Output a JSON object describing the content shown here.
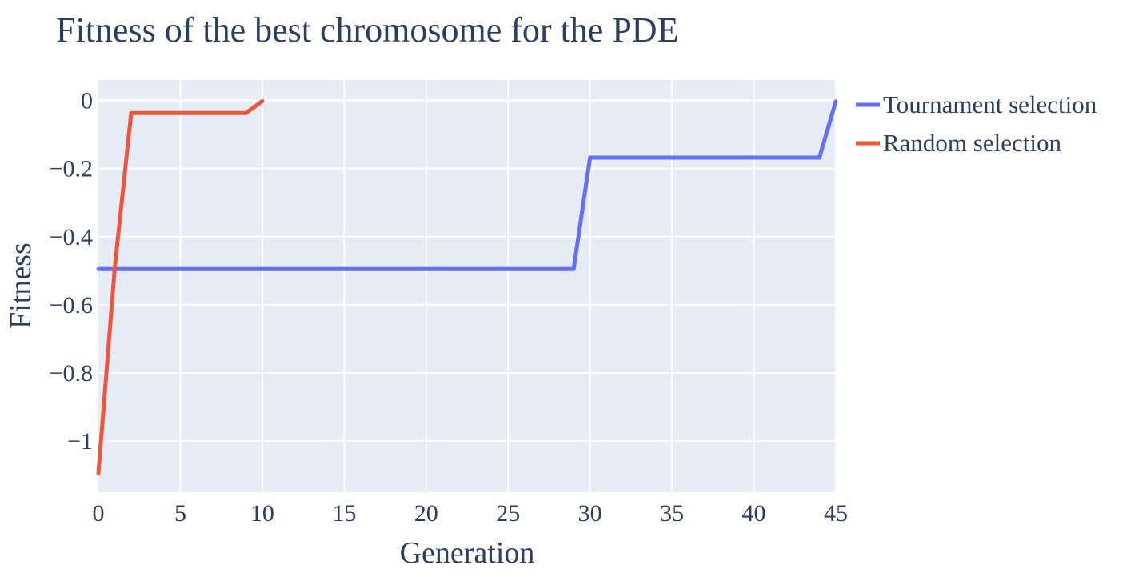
{
  "chart_data": {
    "type": "line",
    "title": "Fitness of the best chromosome for the PDE",
    "xlabel": "Generation",
    "ylabel": "Fitness",
    "xlim": [
      0,
      45
    ],
    "ylim": [
      -1.15,
      0.06
    ],
    "xticks": [
      0,
      5,
      10,
      15,
      20,
      25,
      30,
      35,
      40,
      45
    ],
    "xtick_labels": [
      "0",
      "5",
      "10",
      "15",
      "20",
      "25",
      "30",
      "35",
      "40",
      "45"
    ],
    "yticks": [
      0,
      -0.2,
      -0.4,
      -0.6,
      -0.8,
      -1
    ],
    "ytick_labels": [
      "0",
      "−0.2",
      "−0.4",
      "−0.6",
      "−0.8",
      "−1"
    ],
    "grid": true,
    "legend_position": "right",
    "background_color": "#e5ecf6",
    "series": [
      {
        "name": "Tournament selection",
        "color": "#636efa",
        "x": [
          0,
          1,
          2,
          3,
          4,
          5,
          6,
          7,
          8,
          9,
          10,
          11,
          12,
          13,
          14,
          15,
          16,
          17,
          18,
          19,
          20,
          21,
          22,
          23,
          24,
          25,
          26,
          27,
          28,
          29,
          30,
          31,
          32,
          33,
          34,
          35,
          36,
          37,
          38,
          39,
          40,
          41,
          42,
          43,
          44,
          45
        ],
        "y": [
          -0.495,
          -0.495,
          -0.495,
          -0.495,
          -0.495,
          -0.495,
          -0.495,
          -0.495,
          -0.495,
          -0.495,
          -0.495,
          -0.495,
          -0.495,
          -0.495,
          -0.495,
          -0.495,
          -0.495,
          -0.495,
          -0.495,
          -0.495,
          -0.495,
          -0.495,
          -0.495,
          -0.495,
          -0.495,
          -0.495,
          -0.495,
          -0.495,
          -0.495,
          -0.495,
          -0.168,
          -0.168,
          -0.168,
          -0.168,
          -0.168,
          -0.168,
          -0.168,
          -0.168,
          -0.168,
          -0.168,
          -0.168,
          -0.168,
          -0.168,
          -0.168,
          -0.168,
          -0.003
        ]
      },
      {
        "name": "Random selection",
        "color": "#ef553b",
        "x": [
          0,
          1,
          2,
          3,
          4,
          5,
          6,
          7,
          8,
          9,
          10
        ],
        "y": [
          -1.095,
          -0.49,
          -0.037,
          -0.037,
          -0.037,
          -0.037,
          -0.037,
          -0.037,
          -0.037,
          -0.037,
          -0.002
        ]
      }
    ]
  }
}
